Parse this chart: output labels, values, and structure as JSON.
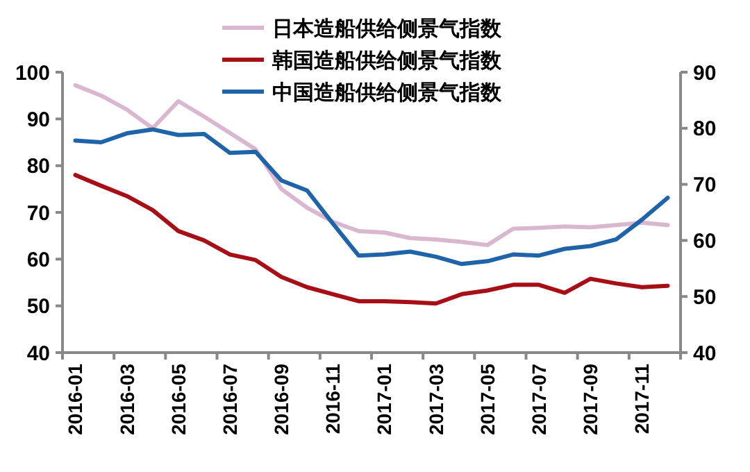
{
  "chart_data": {
    "type": "line",
    "categories": [
      "2016-01",
      null,
      "2016-03",
      null,
      "2016-05",
      null,
      "2016-07",
      null,
      "2016-09",
      null,
      "2016-11",
      null,
      "2017-01",
      null,
      "2017-03",
      null,
      "2017-05",
      null,
      "2017-07",
      null,
      "2017-09",
      null,
      "2017-11",
      null
    ],
    "series": [
      {
        "name": "日本造船供给侧景气指数",
        "color": "#d9b8cf",
        "values": [
          97.2,
          95,
          92,
          88,
          93.8,
          90.5,
          87,
          83.5,
          75,
          71,
          68,
          66,
          65.7,
          64.5,
          64.2,
          63.7,
          63,
          66.5,
          66.7,
          67,
          66.8,
          67.3,
          67.8,
          67.3
        ]
      },
      {
        "name": "韩国造船供给侧景气指数",
        "color": "#a50f15",
        "values": [
          78,
          75.7,
          73.5,
          70.5,
          66,
          64,
          61,
          59.8,
          56.2,
          54,
          52.5,
          51,
          51,
          50.8,
          50.5,
          52.5,
          53.3,
          54.5,
          54.5,
          52.8,
          55.8,
          54.8,
          54,
          54.3
        ]
      },
      {
        "name": "中国造船供给侧景气指数",
        "color": "#1f64a8",
        "axis": "y2",
        "values": [
          77.8,
          77.5,
          79.1,
          79.8,
          78.8,
          79,
          75.6,
          75.8,
          70.7,
          68.9,
          63,
          57.3,
          57.5,
          58,
          57.1,
          55.8,
          56.3,
          57.5,
          57.3,
          58.5,
          59,
          60.2,
          63.7,
          67.6
        ]
      }
    ],
    "ylim": [
      40,
      100
    ],
    "yticks": [
      40,
      50,
      60,
      70,
      80,
      90,
      100
    ],
    "y2lim": [
      40,
      90
    ],
    "y2ticks": [
      40,
      50,
      60,
      70,
      80,
      90
    ],
    "grid": false,
    "legend": "top",
    "marker": "none",
    "line_style": "solid"
  }
}
